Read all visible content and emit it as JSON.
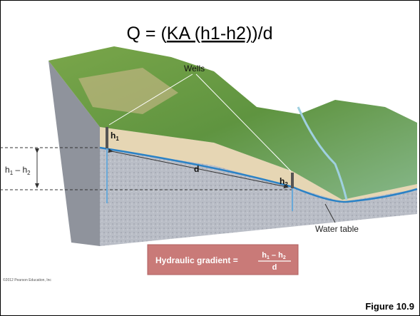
{
  "title": {
    "before": "Q = (",
    "underlined": "KA (h1-h2)",
    "after": ")/d"
  },
  "labels": {
    "wells": "Wells",
    "well_1": {
      "base": "h",
      "sub": "1"
    },
    "well_2": {
      "base": "h",
      "sub": "2"
    },
    "distance": "d",
    "difference": {
      "base_1": "h",
      "sub_1": "1",
      "minus": " – ",
      "base_2": "h",
      "sub_2": "2"
    },
    "water_table": "Water table"
  },
  "formula_box": {
    "label": "Hydraulic gradient =",
    "numerator": {
      "base_1": "h",
      "sub_1": "1",
      "minus": " – ",
      "base_2": "h",
      "sub_2": "2"
    },
    "denominator": "d"
  },
  "copyright": "©2012 Pearson Education, Inc",
  "figure_label": "Figure 10.9"
}
